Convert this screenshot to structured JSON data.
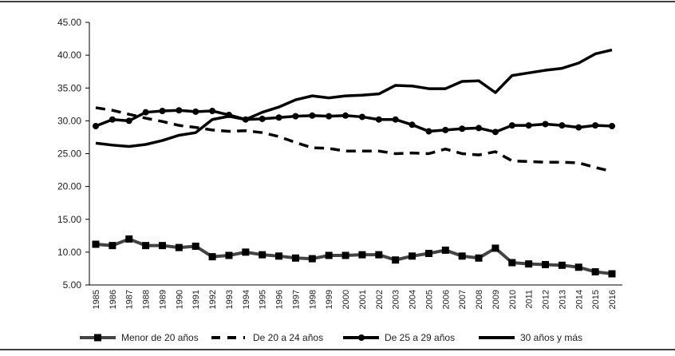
{
  "chart_data": {
    "type": "line",
    "title": "",
    "xlabel": "",
    "ylabel": "",
    "ylim": [
      5,
      45
    ],
    "yticks": [
      "5.00",
      "10.00",
      "15.00",
      "20.00",
      "25.00",
      "30.00",
      "35.00",
      "40.00",
      "45.00"
    ],
    "grid": false,
    "legend_position": "bottom",
    "x": [
      "1985",
      "1986",
      "1987",
      "1988",
      "1989",
      "1990",
      "1991",
      "1992",
      "1993",
      "1994",
      "1995",
      "1996",
      "1997",
      "1998",
      "1999",
      "2000",
      "2001",
      "2002",
      "2003",
      "2004",
      "2005",
      "2006",
      "2007",
      "2008",
      "2009",
      "2010",
      "2011",
      "2012",
      "2013",
      "2014",
      "2015",
      "2016"
    ],
    "series": [
      {
        "name": "Menor de 20 años",
        "style": "solid-square",
        "color": "#444444",
        "values": [
          11.2,
          11.0,
          12.0,
          11.0,
          11.0,
          10.7,
          10.9,
          9.3,
          9.5,
          10.0,
          9.6,
          9.4,
          9.1,
          9.0,
          9.5,
          9.5,
          9.6,
          9.6,
          8.8,
          9.4,
          9.8,
          10.3,
          9.4,
          9.1,
          10.6,
          8.4,
          8.2,
          8.1,
          8.0,
          7.7,
          7.0,
          6.7
        ]
      },
      {
        "name": "De 20 a 24 años",
        "style": "dashed",
        "color": "#000000",
        "values": [
          32.0,
          31.6,
          31.0,
          30.4,
          29.9,
          29.3,
          29.0,
          28.6,
          28.4,
          28.5,
          28.2,
          27.6,
          26.7,
          25.9,
          25.8,
          25.4,
          25.4,
          25.4,
          25.0,
          25.1,
          25.0,
          25.7,
          25.0,
          24.8,
          25.3,
          23.9,
          23.8,
          23.7,
          23.7,
          23.6,
          22.9,
          22.3
        ]
      },
      {
        "name": "De 25 a 29 años",
        "style": "solid-circle",
        "color": "#000000",
        "values": [
          29.2,
          30.2,
          30.0,
          31.3,
          31.5,
          31.6,
          31.4,
          31.5,
          30.9,
          30.2,
          30.3,
          30.5,
          30.7,
          30.8,
          30.7,
          30.8,
          30.6,
          30.2,
          30.2,
          29.4,
          28.4,
          28.6,
          28.8,
          28.9,
          28.3,
          29.3,
          29.3,
          29.5,
          29.3,
          29.0,
          29.3,
          29.2
        ]
      },
      {
        "name": "30 años y más",
        "style": "solid",
        "color": "#000000",
        "values": [
          26.6,
          26.3,
          26.1,
          26.4,
          27.0,
          27.8,
          28.2,
          30.2,
          30.7,
          30.2,
          31.3,
          32.1,
          33.2,
          33.8,
          33.5,
          33.8,
          33.9,
          34.1,
          35.4,
          35.3,
          34.9,
          34.9,
          36.0,
          36.1,
          34.3,
          36.9,
          37.3,
          37.7,
          38.0,
          38.8,
          40.2,
          40.8
        ]
      }
    ]
  }
}
